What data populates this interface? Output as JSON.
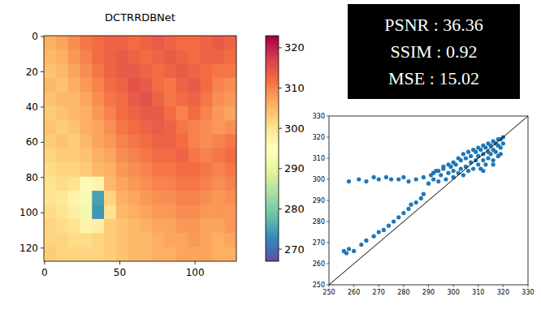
{
  "metrics": [
    "PSNR : 36.36",
    "SSIM : 0.92",
    "MSE : 15.02"
  ],
  "chart_data": [
    {
      "type": "heatmap",
      "title": "DCTRRDBNet",
      "x": [
        3.5,
        11.5,
        19.5,
        27.5,
        35.5,
        43.5,
        51.5,
        59.5,
        67.5,
        75.5,
        83.5,
        91.5,
        99.5,
        107.5,
        115.5,
        123.5
      ],
      "y": [
        3.5,
        11.5,
        19.5,
        27.5,
        35.5,
        43.5,
        51.5,
        59.5,
        67.5,
        75.5,
        83.5,
        91.5,
        99.5,
        107.5,
        115.5,
        123.5
      ],
      "cells": [
        [
          306,
          307,
          309,
          311,
          312,
          313,
          313,
          312,
          313,
          314,
          313,
          312,
          312,
          313,
          314,
          313
        ],
        [
          305,
          306,
          308,
          310,
          312,
          313,
          314,
          313,
          312,
          313,
          314,
          313,
          312,
          313,
          313,
          312
        ],
        [
          304,
          305,
          307,
          309,
          311,
          313,
          314,
          314,
          313,
          312,
          313,
          314,
          313,
          312,
          311,
          311
        ],
        [
          305,
          304,
          306,
          308,
          310,
          312,
          313,
          315,
          314,
          312,
          311,
          313,
          314,
          312,
          310,
          309
        ],
        [
          304,
          305,
          305,
          307,
          309,
          311,
          312,
          314,
          315,
          313,
          311,
          312,
          313,
          311,
          309,
          308
        ],
        [
          303,
          304,
          305,
          306,
          308,
          310,
          312,
          313,
          314,
          314,
          312,
          310,
          312,
          310,
          308,
          307
        ],
        [
          304,
          303,
          304,
          306,
          307,
          309,
          311,
          312,
          313,
          314,
          313,
          311,
          310,
          309,
          308,
          309
        ],
        [
          303,
          304,
          303,
          305,
          307,
          308,
          310,
          311,
          312,
          313,
          313,
          312,
          310,
          309,
          310,
          311
        ],
        [
          302,
          303,
          303,
          304,
          306,
          307,
          309,
          310,
          311,
          312,
          312,
          313,
          311,
          310,
          311,
          312
        ],
        [
          301,
          302,
          302,
          303,
          305,
          306,
          308,
          309,
          310,
          311,
          311,
          312,
          312,
          311,
          310,
          311
        ],
        [
          300,
          301,
          300,
          296,
          297,
          305,
          307,
          308,
          309,
          310,
          310,
          311,
          311,
          310,
          309,
          310
        ],
        [
          300,
          299,
          297,
          293,
          275,
          302,
          306,
          307,
          308,
          309,
          309,
          310,
          310,
          309,
          308,
          309
        ],
        [
          301,
          300,
          298,
          292,
          274,
          300,
          305,
          306,
          307,
          308,
          308,
          309,
          309,
          308,
          308,
          308
        ],
        [
          302,
          301,
          300,
          297,
          298,
          303,
          304,
          305,
          306,
          307,
          307,
          308,
          308,
          307,
          307,
          308
        ],
        [
          302,
          302,
          301,
          301,
          302,
          303,
          304,
          305,
          305,
          306,
          307,
          307,
          308,
          307,
          306,
          307
        ],
        [
          303,
          302,
          302,
          302,
          302,
          303,
          304,
          305,
          305,
          306,
          306,
          307,
          307,
          307,
          306,
          306
        ]
      ],
      "xlim": [
        -0.5,
        127.5
      ],
      "ylim": [
        127.5,
        -0.5
      ],
      "xticks": [
        0,
        50,
        100
      ],
      "yticks": [
        0,
        20,
        40,
        60,
        80,
        100,
        120
      ],
      "colorbar": {
        "range": [
          267,
          323
        ],
        "ticks": [
          270,
          280,
          290,
          300,
          310,
          320
        ]
      }
    },
    {
      "type": "scatter",
      "color": "#1f77b4",
      "x": [
        256,
        257,
        258,
        260,
        263,
        265,
        268,
        270,
        272,
        274,
        276,
        278,
        280,
        282,
        283,
        285,
        287,
        288,
        258,
        262,
        265,
        268,
        270,
        273,
        275,
        278,
        280,
        282,
        285,
        288,
        290,
        291,
        292,
        293,
        294,
        295,
        296,
        297,
        298,
        299,
        300,
        300,
        301,
        302,
        303,
        303,
        304,
        305,
        305,
        306,
        307,
        307,
        308,
        309,
        309,
        310,
        310,
        311,
        311,
        312,
        312,
        313,
        313,
        314,
        314,
        315,
        315,
        316,
        316,
        317,
        317,
        318,
        318,
        319,
        319,
        320,
        320,
        318,
        316,
        314,
        312,
        310,
        308,
        306,
        304,
        302,
        300,
        298,
        296,
        294,
        292,
        312,
        316,
        319
      ],
      "values": [
        266,
        265,
        267,
        266,
        269,
        271,
        273,
        275,
        276,
        278,
        280,
        282,
        284,
        286,
        288,
        289,
        291,
        293,
        299,
        300,
        299,
        301,
        300,
        301,
        300,
        300,
        301,
        299,
        300,
        301,
        298,
        302,
        300,
        304,
        299,
        302,
        305,
        300,
        303,
        306,
        301,
        304,
        307,
        303,
        305,
        309,
        302,
        306,
        310,
        304,
        308,
        311,
        305,
        309,
        313,
        307,
        311,
        305,
        314,
        309,
        312,
        307,
        315,
        310,
        313,
        312,
        316,
        309,
        314,
        313,
        317,
        311,
        316,
        315,
        319,
        317,
        320,
        319,
        318,
        317,
        316,
        315,
        314,
        313,
        312,
        310,
        308,
        307,
        306,
        304,
        303,
        304,
        307,
        312
      ],
      "xlim": [
        250,
        330
      ],
      "ylim": [
        250,
        330
      ],
      "xticks": [
        250,
        260,
        270,
        280,
        290,
        300,
        310,
        320,
        330
      ],
      "yticks": [
        250,
        260,
        270,
        280,
        290,
        300,
        310,
        320,
        330
      ]
    }
  ]
}
